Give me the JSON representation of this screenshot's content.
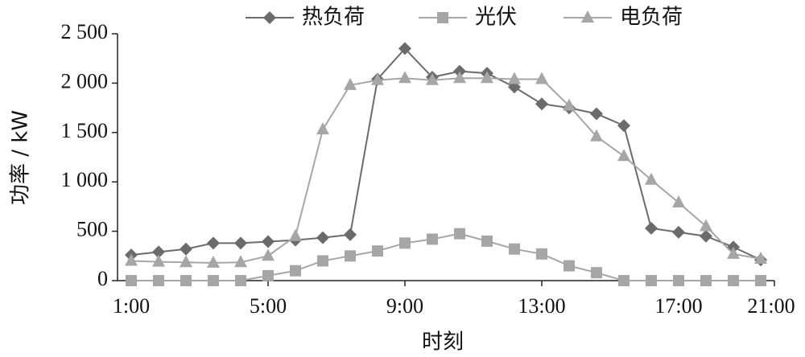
{
  "chart_data": {
    "type": "line",
    "x_label": "时刻",
    "y_label": "功率 / kW",
    "x": [
      0,
      1,
      2,
      3,
      4,
      5,
      6,
      7,
      8,
      9,
      10,
      11,
      12,
      13,
      14,
      15,
      16,
      17,
      18,
      19,
      20,
      21,
      22,
      23
    ],
    "xlim": [
      -0.5,
      23.5
    ],
    "xticks": [
      {
        "value": 0,
        "label": "1:00"
      },
      {
        "value": 5,
        "label": "5:00"
      },
      {
        "value": 10,
        "label": "9:00"
      },
      {
        "value": 15,
        "label": "13:00"
      },
      {
        "value": 20,
        "label": "17:00"
      },
      {
        "value": 23.5,
        "label": "21:00"
      }
    ],
    "ylim": [
      0,
      2500
    ],
    "yticks": [
      0,
      500,
      {
        "value": 1000,
        "label": "1 000"
      },
      {
        "value": 1500,
        "label": "1 500"
      },
      {
        "value": 2000,
        "label": "2 000"
      },
      {
        "value": 2500,
        "label": "2 500"
      }
    ],
    "series": [
      {
        "name": "热负荷",
        "color": "#6b6b6b",
        "marker": "diamond",
        "values": [
          260,
          290,
          320,
          380,
          380,
          395,
          410,
          435,
          465,
          2040,
          2350,
          2060,
          2120,
          2100,
          1960,
          1790,
          1750,
          1690,
          1570,
          530,
          490,
          450,
          340,
          210
        ]
      },
      {
        "name": "光伏",
        "color": "#a6a6a6",
        "marker": "square",
        "values": [
          0,
          0,
          0,
          0,
          0,
          50,
          100,
          200,
          250,
          300,
          380,
          420,
          475,
          400,
          320,
          270,
          150,
          80,
          0,
          0,
          0,
          0,
          0,
          0
        ]
      },
      {
        "name": "电负荷",
        "color": "#a6a6a6",
        "marker": "triangle",
        "values": [
          200,
          190,
          185,
          180,
          185,
          250,
          450,
          1530,
          1980,
          2030,
          2050,
          2030,
          2050,
          2050,
          2040,
          2040,
          1770,
          1460,
          1260,
          1020,
          790,
          550,
          270,
          220
        ]
      }
    ]
  }
}
